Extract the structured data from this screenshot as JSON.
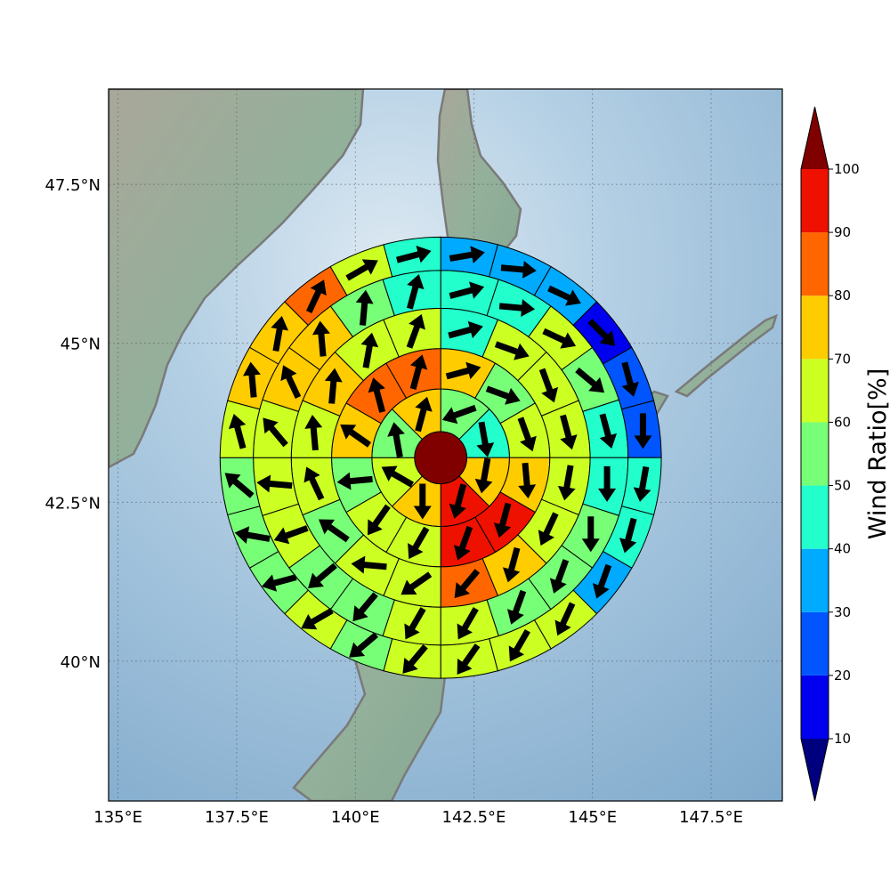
{
  "chart_data": {
    "type": "heatmap",
    "subtype": "polar sector plot over map",
    "x_axis": {
      "range": [
        134.8,
        149.0
      ],
      "ticks": [
        135,
        137.5,
        140,
        142.5,
        145,
        147.5
      ],
      "tick_labels": [
        "135°E",
        "137.5°E",
        "140°E",
        "142.5°E",
        "145°E",
        "147.5°E"
      ]
    },
    "y_axis": {
      "range": [
        37.8,
        49.0
      ],
      "ticks": [
        40,
        42.5,
        45,
        47.5
      ],
      "tick_labels": [
        "40°N",
        "42.5°N",
        "45°N",
        "47.5°N"
      ]
    },
    "grid": true,
    "center": {
      "lon": 141.8,
      "lat": 43.2,
      "value": 100
    },
    "ring_radii_deg": [
      0.55,
      1.45,
      2.3,
      3.15,
      3.95,
      4.65
    ],
    "rings": [
      {
        "ring": 1,
        "sectors": 8,
        "values": [
          55,
          40,
          75,
          95,
          75,
          60,
          55,
          75
        ]
      },
      {
        "ring": 2,
        "sectors": 12,
        "values": [
          75,
          55,
          60,
          70,
          95,
          95,
          60,
          60,
          55,
          70,
          85,
          85
        ]
      },
      {
        "ring": 3,
        "sectors": 16,
        "values": [
          45,
          65,
          65,
          60,
          65,
          60,
          75,
          85,
          65,
          60,
          55,
          65,
          60,
          75,
          65,
          65
        ]
      },
      {
        "ring": 4,
        "sectors": 20,
        "values": [
          45,
          45,
          60,
          55,
          45,
          45,
          55,
          50,
          55,
          65,
          65,
          55,
          55,
          60,
          60,
          65,
          75,
          75,
          55,
          45
        ]
      },
      {
        "ring": 5,
        "sectors": 24,
        "values": [
          35,
          35,
          30,
          15,
          20,
          25,
          45,
          40,
          30,
          60,
          60,
          60,
          60,
          55,
          60,
          55,
          55,
          55,
          60,
          70,
          75,
          85,
          65,
          45
        ]
      }
    ],
    "wind_arrows": {
      "ring_directions_deg": [
        [
          250,
          170,
          190,
          195,
          180,
          300,
          350,
          15
        ],
        [
          75,
          110,
          160,
          175,
          195,
          200,
          210,
          215,
          265,
          305,
          345,
          15
        ],
        [
          75,
          110,
          160,
          165,
          190,
          205,
          195,
          220,
          235,
          275,
          305,
          335,
          355,
          5,
          10,
          20
        ],
        [
          75,
          95,
          115,
          130,
          165,
          180,
          180,
          200,
          200,
          210,
          210,
          220,
          230,
          250,
          275,
          320,
          335,
          355,
          5,
          15
        ],
        [
          80,
          95,
          115,
          135,
          165,
          180,
          190,
          195,
          200,
          205,
          210,
          215,
          220,
          230,
          240,
          255,
          280,
          310,
          345,
          355,
          10,
          25,
          60,
          75
        ]
      ]
    },
    "colorbar": {
      "label": "Wind Ratio[%]",
      "ticks": [
        10,
        20,
        30,
        40,
        50,
        60,
        70,
        80,
        90,
        100
      ],
      "levels": [
        10,
        20,
        30,
        40,
        50,
        60,
        70,
        80,
        90,
        100
      ],
      "colors": [
        "#0000ee",
        "#0055ff",
        "#00aaff",
        "#22ffcc",
        "#77ff77",
        "#ccff22",
        "#ffcc00",
        "#ff6600",
        "#ee1100"
      ],
      "under_color": "#00007f",
      "over_color": "#800000",
      "extend": "both"
    },
    "colors": {
      "ocean": "#9fc4dc",
      "land": "#8eab95",
      "coastline": "#7a7a7a",
      "arrow": "#000000"
    }
  }
}
